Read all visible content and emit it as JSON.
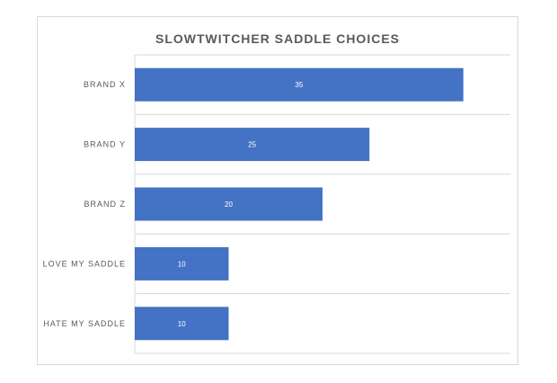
{
  "chart_data": {
    "type": "bar",
    "orientation": "horizontal",
    "title": "SLOWTWITCHER SADDLE CHOICES",
    "xlabel": "",
    "ylabel": "",
    "categories": [
      "BRAND X",
      "BRAND Y",
      "BRAND Z",
      "LOVE MY SADDLE",
      "HATE MY SADDLE"
    ],
    "values": [
      35,
      25,
      20,
      10,
      10
    ],
    "data_labels": [
      "35",
      "25",
      "20",
      "10",
      "10"
    ],
    "xlim": [
      0,
      40
    ],
    "grid": true,
    "legend": "none",
    "colors": {
      "bar": "#4472c4",
      "gridline": "#d9d9d9",
      "category_label": "#595959",
      "data_label": "#ffffff",
      "title": "#595959"
    }
  }
}
